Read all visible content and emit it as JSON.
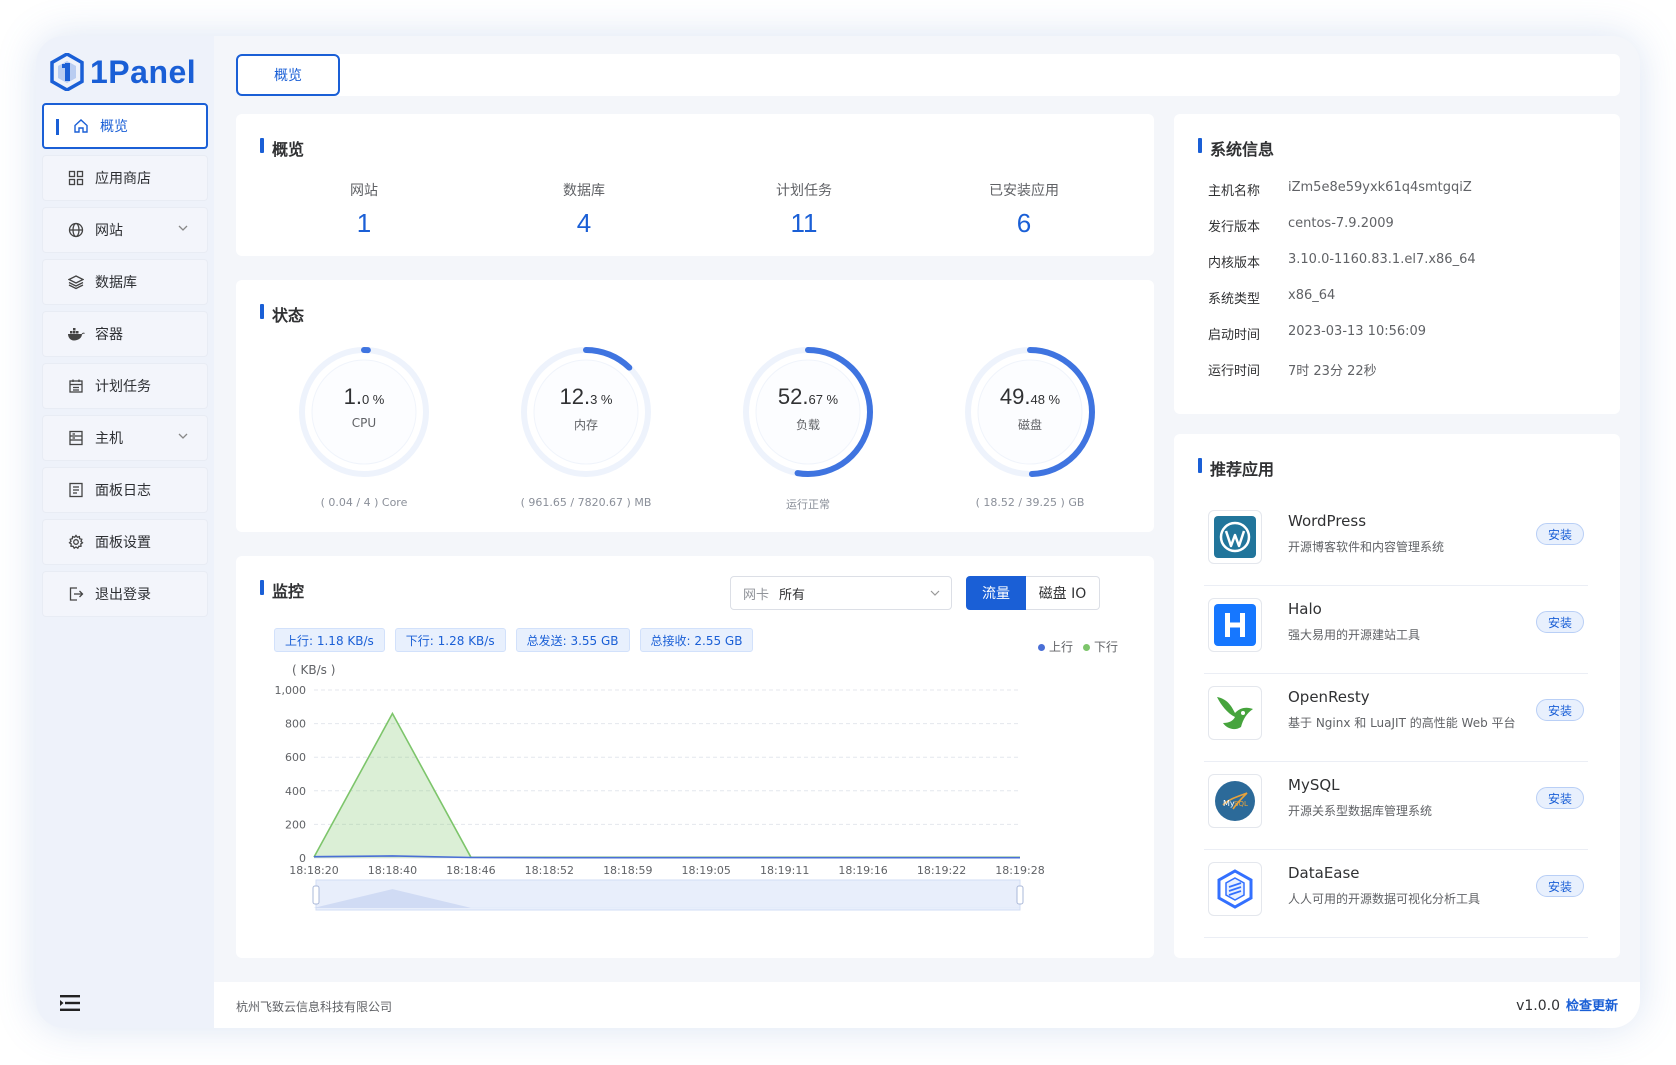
{
  "app": {
    "name": "1Panel"
  },
  "sidebar": {
    "items": [
      {
        "label": "概览",
        "icon": "home-icon"
      },
      {
        "label": "应用商店",
        "icon": "grid-icon"
      },
      {
        "label": "网站",
        "icon": "globe-icon"
      },
      {
        "label": "数据库",
        "icon": "layers-icon"
      },
      {
        "label": "容器",
        "icon": "docker-icon"
      },
      {
        "label": "计划任务",
        "icon": "calendar-icon"
      },
      {
        "label": "主机",
        "icon": "server-icon"
      },
      {
        "label": "面板日志",
        "icon": "log-icon"
      },
      {
        "label": "面板设置",
        "icon": "gear-icon"
      },
      {
        "label": "退出登录",
        "icon": "logout-icon"
      }
    ]
  },
  "tabs": [
    {
      "label": "概览"
    }
  ],
  "overview": {
    "title": "概览",
    "stats": [
      {
        "label": "网站",
        "value": "1"
      },
      {
        "label": "数据库",
        "value": "4"
      },
      {
        "label": "计划任务",
        "value": "11"
      },
      {
        "label": "已安装应用",
        "value": "6"
      }
    ]
  },
  "status": {
    "title": "状态",
    "gauges": [
      {
        "int": "1.",
        "dec": "0 %",
        "name": "CPU",
        "sub": "( 0.04 / 4 ) Core",
        "percent": 1.0
      },
      {
        "int": "12.",
        "dec": "3 %",
        "name": "内存",
        "sub": "( 961.65 / 7820.67 ) MB",
        "percent": 12.3
      },
      {
        "int": "52.",
        "dec": "67 %",
        "name": "负载",
        "sub": "运行正常",
        "percent": 52.67
      },
      {
        "int": "49.",
        "dec": "48 %",
        "name": "磁盘",
        "sub": "( 18.52 / 39.25 ) GB",
        "percent": 49.48
      }
    ]
  },
  "monitor": {
    "title": "监控",
    "nic_prefix": "网卡",
    "nic_value": "所有",
    "mode_traffic": "流量",
    "mode_disk": "磁盘 IO",
    "tags": [
      "上行: 1.18 KB/s",
      "下行: 1.28 KB/s",
      "总发送: 3.55 GB",
      "总接收: 2.55 GB"
    ],
    "legend": [
      {
        "name": "上行",
        "color": "#4a6fd6"
      },
      {
        "name": "下行",
        "color": "#7dc56b"
      }
    ]
  },
  "chart_data": {
    "type": "area",
    "ylabel": "( KB/s )",
    "ylim": [
      0,
      1000
    ],
    "yticks": [
      "1,000",
      "800",
      "600",
      "400",
      "200",
      "0"
    ],
    "x": [
      "18:18:20",
      "18:18:40",
      "18:18:46",
      "18:18:52",
      "18:18:59",
      "18:19:05",
      "18:19:11",
      "18:19:16",
      "18:19:22",
      "18:19:28"
    ],
    "series": [
      {
        "name": "下行",
        "color": "#7dc56b",
        "values": [
          5,
          860,
          5,
          4,
          4,
          4,
          4,
          4,
          4,
          4
        ]
      },
      {
        "name": "上行",
        "color": "#4a6fd6",
        "values": [
          8,
          12,
          3,
          2,
          2,
          2,
          2,
          2,
          2,
          2
        ]
      }
    ]
  },
  "sysinfo": {
    "title": "系统信息",
    "rows": [
      {
        "k": "主机名称",
        "v": "iZm5e8e59yxk61q4smtgqiZ"
      },
      {
        "k": "发行版本",
        "v": "centos-7.9.2009"
      },
      {
        "k": "内核版本",
        "v": "3.10.0-1160.83.1.el7.x86_64"
      },
      {
        "k": "系统类型",
        "v": "x86_64"
      },
      {
        "k": "启动时间",
        "v": "2023-03-13 10:56:09"
      },
      {
        "k": "运行时间",
        "v": "7时 23分 22秒"
      }
    ]
  },
  "apps": {
    "title": "推荐应用",
    "install_label": "安装",
    "items": [
      {
        "name": "WordPress",
        "desc": "开源博客软件和内容管理系统",
        "icon": "wordpress-icon"
      },
      {
        "name": "Halo",
        "desc": "强大易用的开源建站工具",
        "icon": "halo-icon"
      },
      {
        "name": "OpenResty",
        "desc": "基于 Nginx 和 LuaJIT 的高性能 Web 平台",
        "icon": "openresty-icon"
      },
      {
        "name": "MySQL",
        "desc": "开源关系型数据库管理系统",
        "icon": "mysql-icon"
      },
      {
        "name": "DataEase",
        "desc": "人人可用的开源数据可视化分析工具",
        "icon": "dataease-icon"
      }
    ]
  },
  "footer": {
    "company": "杭州飞致云信息科技有限公司",
    "version": "v1.0.0",
    "check_update": "检查更新"
  }
}
